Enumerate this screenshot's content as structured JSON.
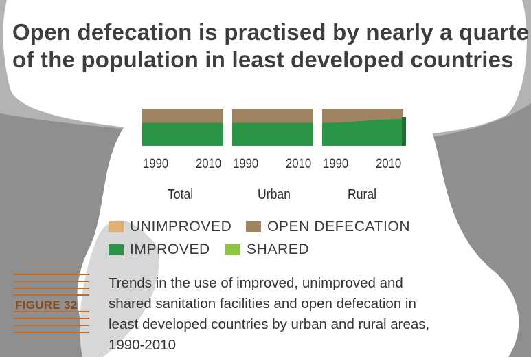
{
  "title": {
    "line1": "Open defecation is practised by nearly a quarte",
    "line2": "of the population in least developed countries"
  },
  "chart_data": {
    "type": "area",
    "groups": [
      {
        "name": "Total",
        "x": [
          1990,
          2010
        ],
        "x_labels": [
          "1990",
          "2010"
        ],
        "series": [
          {
            "name": "IMPROVED",
            "values": [
              0.62,
              0.62
            ]
          },
          {
            "name": "OPEN DEFECATION",
            "values": [
              0.38,
              0.38
            ]
          }
        ]
      },
      {
        "name": "Urban",
        "x": [
          1990,
          2010
        ],
        "x_labels": [
          "1990",
          "2010"
        ],
        "series": [
          {
            "name": "IMPROVED",
            "values": [
              0.62,
              0.62
            ]
          },
          {
            "name": "OPEN DEFECATION",
            "values": [
              0.38,
              0.38
            ]
          }
        ]
      },
      {
        "name": "Rural",
        "x": [
          1990,
          2010
        ],
        "x_labels": [
          "1990",
          "2010"
        ],
        "series": [
          {
            "name": "IMPROVED",
            "values": [
              0.62,
              0.72
            ]
          },
          {
            "name": "OPEN DEFECATION",
            "values": [
              0.38,
              0.28
            ]
          }
        ]
      }
    ],
    "legend": [
      {
        "name": "UNIMPROVED",
        "color": "#e0b072"
      },
      {
        "name": "OPEN DEFECATION",
        "color": "#a08462"
      },
      {
        "name": "IMPROVED",
        "color": "#2a9447"
      },
      {
        "name": "SHARED",
        "color": "#8cc63f"
      }
    ],
    "legend_position": "bottom",
    "grid": false
  },
  "figure_label": "FIGURE 32",
  "caption": [
    "Trends in the use of improved, unimproved and",
    "shared sanitation facilities and open defecation in",
    "least developed countries by urban and rural areas,",
    "1990-2010"
  ]
}
